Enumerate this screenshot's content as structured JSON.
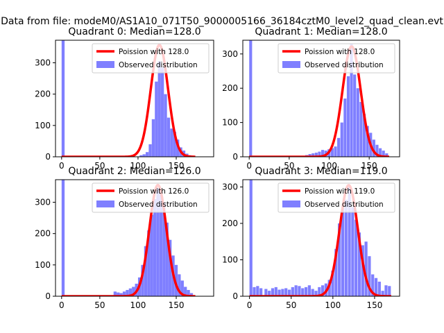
{
  "figure": {
    "suptitle": "Data from file: modeM0/AS1A10_071T50_9000005166_36184cztM0_level2_quad_clean.evt"
  },
  "colors": {
    "hist": "#7f7fff",
    "curve": "#ff0000",
    "axis": "#000000"
  },
  "chart_data": [
    {
      "type": "bar",
      "title": "Quadrant 0: Median=128.0",
      "xlim": [
        -8,
        199
      ],
      "ylim": [
        0,
        372
      ],
      "xticks": [
        0,
        50,
        100,
        150
      ],
      "yticks": [
        0,
        100,
        200,
        300
      ],
      "bin_width": 3.9,
      "bins": [
        [
          0,
          372
        ],
        [
          102,
          5
        ],
        [
          106,
          8
        ],
        [
          110,
          15
        ],
        [
          114,
          40
        ],
        [
          118,
          120
        ],
        [
          122,
          240
        ],
        [
          126,
          305
        ],
        [
          130,
          285
        ],
        [
          134,
          200
        ],
        [
          138,
          125
        ],
        [
          142,
          90
        ],
        [
          146,
          80
        ],
        [
          150,
          55
        ],
        [
          154,
          30
        ],
        [
          158,
          20
        ],
        [
          162,
          10
        ],
        [
          166,
          5
        ],
        [
          170,
          3
        ]
      ],
      "legend": {
        "location": "top-right",
        "curve_label": "Poission with 128.0",
        "hist_label": "Observed distribution"
      },
      "poisson": {
        "peak_x": 128.0,
        "peak_y": 357,
        "sigma": 11.3,
        "x_range": [
          0,
          175
        ]
      }
    },
    {
      "type": "bar",
      "title": "Quadrant 1: Median=128.0",
      "xlim": [
        -8,
        188
      ],
      "ylim": [
        0,
        340
      ],
      "xticks": [
        0,
        50,
        100,
        150
      ],
      "yticks": [
        0,
        100,
        200,
        300
      ],
      "bin_width": 3.6,
      "bins": [
        [
          0,
          340
        ],
        [
          70,
          5
        ],
        [
          74,
          8
        ],
        [
          78,
          10
        ],
        [
          82,
          12
        ],
        [
          86,
          15
        ],
        [
          90,
          20
        ],
        [
          94,
          18
        ],
        [
          98,
          22
        ],
        [
          102,
          25
        ],
        [
          106,
          30
        ],
        [
          110,
          55
        ],
        [
          114,
          100
        ],
        [
          118,
          170
        ],
        [
          122,
          235
        ],
        [
          126,
          330
        ],
        [
          130,
          240
        ],
        [
          134,
          200
        ],
        [
          138,
          160
        ],
        [
          142,
          125
        ],
        [
          146,
          90
        ],
        [
          150,
          70
        ],
        [
          154,
          50
        ],
        [
          158,
          35
        ],
        [
          162,
          25
        ],
        [
          166,
          18
        ],
        [
          170,
          10
        ]
      ],
      "legend": {
        "location": "top-right",
        "curve_label": "Poission with 128.0",
        "hist_label": "Observed distribution"
      },
      "poisson": {
        "peak_x": 128.0,
        "peak_y": 322,
        "sigma": 11.3,
        "x_range": [
          0,
          175
        ]
      }
    },
    {
      "type": "bar",
      "title": "Quadrant 2: Median=126.0",
      "xlim": [
        -8,
        199
      ],
      "ylim": [
        0,
        372
      ],
      "xticks": [
        0,
        50,
        100,
        150
      ],
      "yticks": [
        0,
        100,
        200,
        300
      ],
      "bin_width": 3.9,
      "bins": [
        [
          0,
          372
        ],
        [
          68,
          15
        ],
        [
          72,
          12
        ],
        [
          76,
          10
        ],
        [
          80,
          15
        ],
        [
          84,
          20
        ],
        [
          88,
          25
        ],
        [
          92,
          30
        ],
        [
          96,
          40
        ],
        [
          100,
          60
        ],
        [
          104,
          100
        ],
        [
          108,
          160
        ],
        [
          112,
          210
        ],
        [
          116,
          260
        ],
        [
          120,
          310
        ],
        [
          124,
          345
        ],
        [
          128,
          330
        ],
        [
          132,
          300
        ],
        [
          136,
          235
        ],
        [
          140,
          180
        ],
        [
          144,
          130
        ],
        [
          148,
          100
        ],
        [
          152,
          70
        ],
        [
          156,
          50
        ],
        [
          160,
          30
        ],
        [
          164,
          20
        ],
        [
          168,
          10
        ]
      ],
      "legend": {
        "location": "top-right",
        "curve_label": "Poission with 126.0",
        "hist_label": "Observed distribution"
      },
      "poisson": {
        "peak_x": 126.0,
        "peak_y": 355,
        "sigma": 11.2,
        "x_range": [
          0,
          175
        ]
      }
    },
    {
      "type": "bar",
      "title": "Quadrant 3: Median=119.0",
      "xlim": [
        -8,
        180
      ],
      "ylim": [
        0,
        320
      ],
      "xticks": [
        0,
        50,
        100,
        150
      ],
      "yticks": [
        0,
        100,
        200,
        300
      ],
      "bin_width": 3.5,
      "bins": [
        [
          0,
          320
        ],
        [
          4,
          25
        ],
        [
          8,
          28
        ],
        [
          12,
          22
        ],
        [
          18,
          20
        ],
        [
          22,
          15
        ],
        [
          26,
          22
        ],
        [
          30,
          25
        ],
        [
          34,
          18
        ],
        [
          38,
          20
        ],
        [
          42,
          22
        ],
        [
          46,
          18
        ],
        [
          50,
          25
        ],
        [
          54,
          30
        ],
        [
          58,
          28
        ],
        [
          62,
          22
        ],
        [
          66,
          25
        ],
        [
          70,
          30
        ],
        [
          74,
          20
        ],
        [
          78,
          15
        ],
        [
          82,
          25
        ],
        [
          86,
          30
        ],
        [
          90,
          35
        ],
        [
          94,
          45
        ],
        [
          98,
          70
        ],
        [
          102,
          130
        ],
        [
          106,
          200
        ],
        [
          110,
          245
        ],
        [
          114,
          265
        ],
        [
          118,
          300
        ],
        [
          122,
          245
        ],
        [
          126,
          210
        ],
        [
          130,
          175
        ],
        [
          134,
          140
        ],
        [
          138,
          150
        ],
        [
          142,
          110
        ],
        [
          146,
          60
        ],
        [
          150,
          50
        ],
        [
          154,
          40
        ],
        [
          158,
          15
        ],
        [
          162,
          30
        ],
        [
          166,
          28
        ]
      ],
      "legend": {
        "location": "top-right",
        "curve_label": "Poission with 119.0",
        "hist_label": "Observed distribution"
      },
      "poisson": {
        "peak_x": 119.0,
        "peak_y": 305,
        "sigma": 10.9,
        "x_range": [
          0,
          170
        ]
      }
    }
  ]
}
